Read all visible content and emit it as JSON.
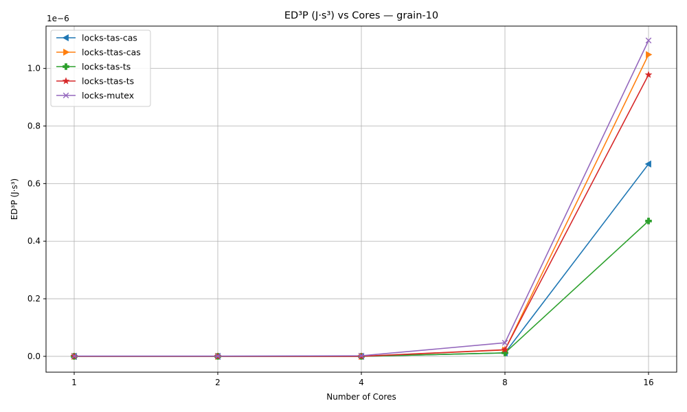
{
  "chart_data": {
    "type": "line",
    "title": "ED³P (J·s³) vs Cores — grain-10",
    "xlabel": "Number of Cores",
    "ylabel": "ED³P (J·s³)",
    "y_offset_text": "1e−6",
    "y_scale_factor": 1e-06,
    "categories": [
      "1",
      "2",
      "4",
      "8",
      "16"
    ],
    "x_axis_kind": "categorical (equally spaced)",
    "ylim": [
      -0.055,
      1.147
    ],
    "yticks": [
      0.0,
      0.2,
      0.4,
      0.6,
      0.8,
      1.0
    ],
    "ytick_labels": [
      "0.0",
      "0.2",
      "0.4",
      "0.6",
      "0.8",
      "1.0"
    ],
    "grid": true,
    "legend_position": "top-left",
    "series": [
      {
        "name": "locks-tas-cas",
        "color": "#1f77b4",
        "marker": "triangle-left",
        "values": [
          0.0,
          0.0,
          0.0,
          0.012,
          0.668
        ]
      },
      {
        "name": "locks-ttas-cas",
        "color": "#ff7f0e",
        "marker": "triangle-right",
        "values": [
          0.0,
          0.0,
          0.0,
          0.022,
          1.048
        ]
      },
      {
        "name": "locks-tas-ts",
        "color": "#2ca02c",
        "marker": "plus-filled",
        "values": [
          0.0,
          0.0,
          0.0,
          0.012,
          0.47
        ]
      },
      {
        "name": "locks-ttas-ts",
        "color": "#d62728",
        "marker": "star",
        "values": [
          0.0,
          0.0,
          0.0,
          0.023,
          0.978
        ]
      },
      {
        "name": "locks-mutex",
        "color": "#9467bd",
        "marker": "x",
        "values": [
          0.001,
          0.001,
          0.002,
          0.047,
          1.097
        ]
      }
    ]
  }
}
